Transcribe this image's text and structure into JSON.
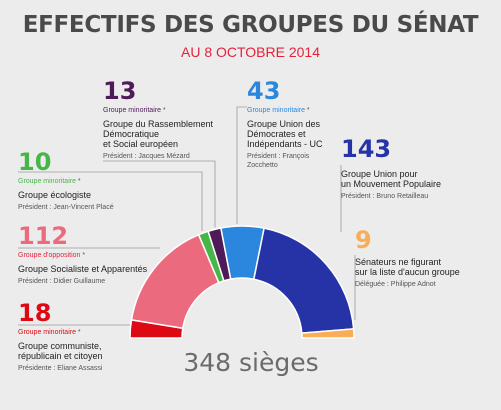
{
  "title": "EFFECTIFS DES GROUPES DU SÉNAT",
  "subtitle": "AU 8 OCTOBRE 2014",
  "colors": {
    "crc": "#dd0a13",
    "socialiste": "#ec6a7e",
    "ecologiste": "#47b649",
    "rdse": "#4e1a58",
    "udi": "#2a87dd",
    "ump": "#2633a7",
    "nonInscrits": "#f7ae57"
  },
  "groups": {
    "rdse": {
      "count": "13",
      "kind": "Groupe minoritaire",
      "star": "*",
      "name_lines": [
        "Groupe du Rassemblement",
        "Démocratique",
        "et Social européen"
      ],
      "president": "Président : Jacques Mézard"
    },
    "udi": {
      "count": "43",
      "kind": "Groupe minoritaire",
      "star": "*",
      "name_lines": [
        "Groupe Union des",
        "Démocrates et",
        "Indépendants - UC"
      ],
      "president_lines": [
        "Président : François",
        "Zocchetto"
      ]
    },
    "ump": {
      "count": "143",
      "name_lines": [
        "Groupe Union pour",
        "un Mouvement Populaire"
      ],
      "president": "Président : Bruno Retailleau"
    },
    "ecologiste": {
      "count": "10",
      "kind": "Groupe minoritaire",
      "star": "*",
      "name_lines": [
        "Groupe écologiste"
      ],
      "president": "Président : Jean-Vincent Placé"
    },
    "socialiste": {
      "count": "112",
      "kind": "Groupe d'opposition",
      "star": "*",
      "name_lines": [
        "Groupe Socialiste et Apparentés"
      ],
      "president": "Président : Didier Guillaume"
    },
    "nonInscrits": {
      "count": "9",
      "name_lines": [
        "Sénateurs ne figurant",
        "sur la liste d'aucun groupe"
      ],
      "president": "Déléguée : Philippe Adnot"
    },
    "crc": {
      "count": "18",
      "kind": "Groupe minoritaire",
      "star": "*",
      "name_lines": [
        "Groupe communiste,",
        "républicain et citoyen"
      ],
      "president": "Présidente : Eliane Assassi"
    }
  },
  "seats_label": "348 sièges",
  "chart_data": {
    "type": "pie",
    "subtype": "semicircle-donut",
    "total": 348,
    "slices": [
      {
        "label": "Groupe communiste, républicain et citoyen",
        "value": 18
      },
      {
        "label": "Groupe Socialiste et Apparentés",
        "value": 112
      },
      {
        "label": "Groupe écologiste",
        "value": 10
      },
      {
        "label": "Groupe du Rassemblement Démocratique et Social européen",
        "value": 13
      },
      {
        "label": "Groupe Union des Démocrates et Indépendants - UC",
        "value": 43
      },
      {
        "label": "Groupe Union pour un Mouvement Populaire",
        "value": 143
      },
      {
        "label": "Sénateurs ne figurant sur la liste d'aucun groupe",
        "value": 9
      }
    ]
  }
}
